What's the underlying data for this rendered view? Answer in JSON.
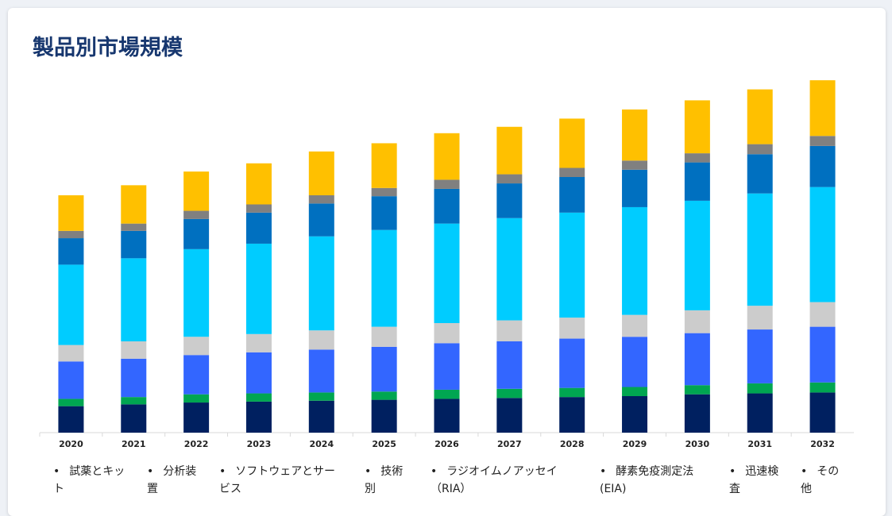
{
  "card": {
    "title": "製品別市場規模"
  },
  "chart_data": {
    "type": "bar",
    "stacked": true,
    "title": "製品別市場規模",
    "categories": [
      "2020",
      "2021",
      "2022",
      "2023",
      "2024",
      "2025",
      "2026",
      "2027",
      "2028",
      "2029",
      "2030",
      "2031",
      "2032"
    ],
    "series": [
      {
        "name": "試薬とキット",
        "color": "#002060",
        "values": [
          29,
          31,
          33,
          34,
          35,
          36,
          37,
          38,
          39,
          40,
          42,
          43,
          44
        ]
      },
      {
        "name": "分析装置",
        "color": "#00a651",
        "values": [
          8,
          8,
          9,
          9,
          9,
          9,
          10,
          10,
          10,
          10,
          10,
          11,
          11
        ]
      },
      {
        "name": "ソフトウェアとサービス",
        "color": "#3366ff",
        "values": [
          41,
          42,
          43,
          45,
          47,
          49,
          51,
          52,
          54,
          55,
          57,
          59,
          61
        ]
      },
      {
        "name": "技術別",
        "color": "#cccccc",
        "values": [
          18,
          19,
          20,
          20,
          21,
          22,
          22,
          23,
          23,
          24,
          25,
          26,
          27
        ]
      },
      {
        "name": "ラジオイムノアッセイ（RIA）",
        "color": "#00ccff",
        "values": [
          88,
          91,
          96,
          99,
          103,
          106,
          109,
          112,
          115,
          118,
          120,
          123,
          126
        ]
      },
      {
        "name": "酵素免疫測定法 (EIA)",
        "color": "#0070c0",
        "values": [
          29,
          30,
          33,
          34,
          36,
          37,
          38,
          38,
          39,
          41,
          42,
          43,
          45
        ]
      },
      {
        "name": "迅速検査",
        "color": "#808080",
        "values": [
          8,
          8,
          9,
          9,
          9,
          9,
          10,
          10,
          10,
          10,
          10,
          11,
          11
        ]
      },
      {
        "name": "その他",
        "color": "#ffc000",
        "values": [
          39,
          42,
          43,
          45,
          48,
          49,
          51,
          52,
          54,
          56,
          58,
          60,
          61
        ]
      }
    ],
    "ylim": [
      0,
      400
    ],
    "grid": false,
    "legend_position": "bottom"
  },
  "legend": [
    {
      "lines": [
        "試薬とキッ",
        "ト"
      ]
    },
    {
      "lines": [
        "分析装",
        "置"
      ]
    },
    {
      "lines": [
        "ソフトウェアとサー",
        "ビス"
      ]
    },
    {
      "lines": [
        "技術",
        "別"
      ]
    },
    {
      "lines": [
        "ラジオイムノアッセイ",
        "（RIA）"
      ]
    },
    {
      "lines": [
        "酵素免疫測定法",
        "(EIA)"
      ]
    },
    {
      "lines": [
        "迅速検",
        "査"
      ]
    },
    {
      "lines": [
        "その",
        "他"
      ]
    }
  ]
}
